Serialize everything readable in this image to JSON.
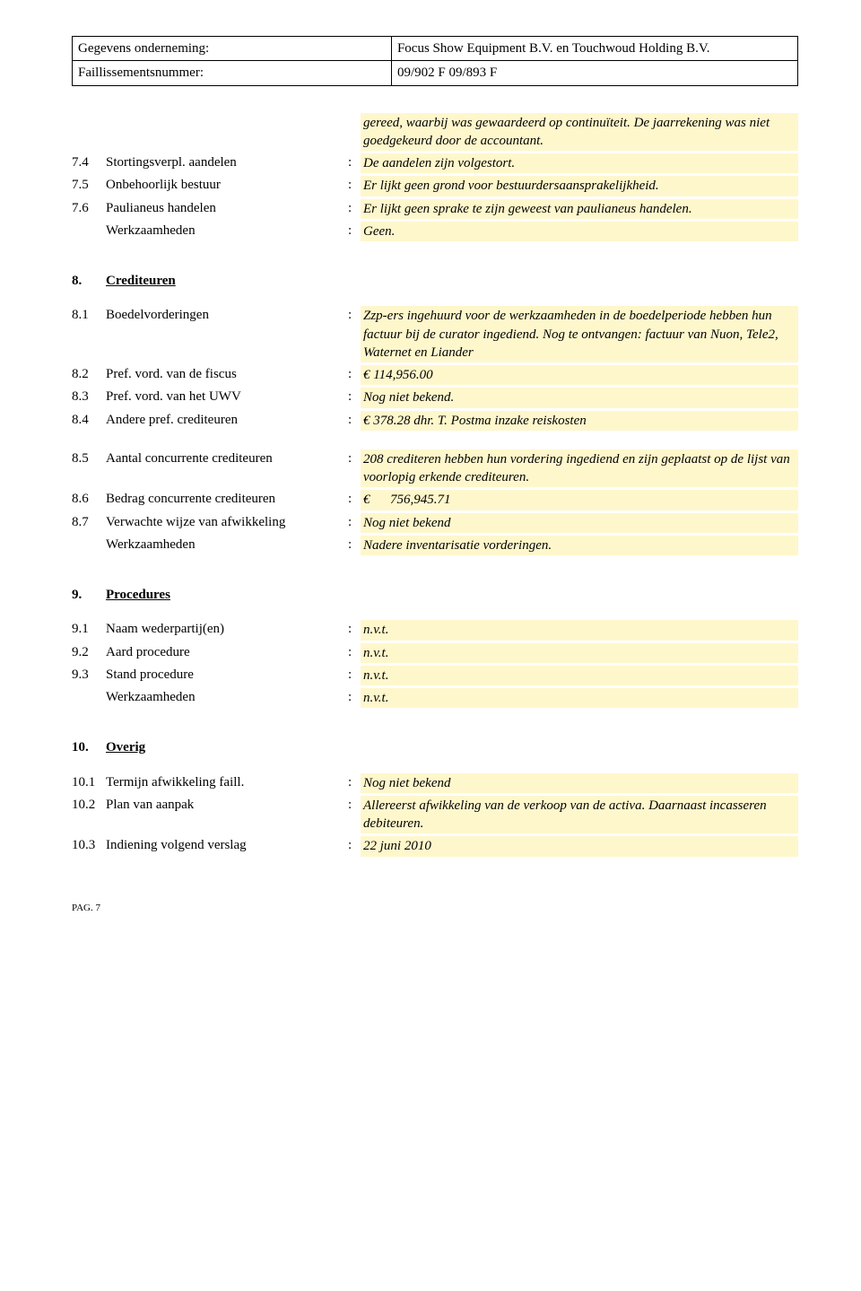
{
  "header": {
    "company_label": "Gegevens onderneming:",
    "company_value": "Focus Show Equipment B.V. en Touchwoud Holding B.V.",
    "fileno_label": "Faillissementsnummer:",
    "fileno_value": "09/902 F 09/893 F"
  },
  "hl_bg": "#fff7cc",
  "block7_intro": "gereed, waarbij was gewaardeerd op continuïteit. De jaarrekening was niet goedgekeurd door de accountant.",
  "r74": {
    "num": "7.4",
    "label": "Stortingsverpl. aandelen",
    "val": "De aandelen zijn volgestort."
  },
  "r75": {
    "num": "7.5",
    "label": "Onbehoorlijk bestuur",
    "val": "Er lijkt geen grond voor bestuurdersaansprakelijkheid."
  },
  "r76": {
    "num": "7.6",
    "label": "Paulianeus handelen",
    "val": "Er lijkt geen sprake te zijn geweest van paulianeus handelen."
  },
  "r7w": {
    "label": "Werkzaamheden",
    "val": "Geen."
  },
  "sec8": {
    "num": "8.",
    "label": "Crediteuren"
  },
  "r81": {
    "num": "8.1",
    "label": "Boedelvorderingen",
    "val": "Zzp-ers ingehuurd voor de werkzaamheden in de boedelperiode hebben hun factuur bij de curator ingediend. Nog te ontvangen: factuur van Nuon, Tele2, Waternet en Liander"
  },
  "r82": {
    "num": "8.2",
    "label": "Pref. vord. van de fiscus",
    "val": "€ 114,956.00"
  },
  "r83": {
    "num": "8.3",
    "label": "Pref. vord. van het UWV",
    "val": "Nog niet bekend."
  },
  "r84": {
    "num": "8.4",
    "label": "Andere pref. crediteuren",
    "val": "€ 378.28 dhr. T. Postma inzake  reiskosten"
  },
  "r85": {
    "num": "8.5",
    "label": "Aantal concurrente crediteuren",
    "val": "208 crediteren hebben hun vordering ingediend en zijn geplaatst op de lijst van voorlopig erkende crediteuren."
  },
  "r86": {
    "num": "8.6",
    "label": "Bedrag concurrente crediteuren",
    "val": "€      756,945.71"
  },
  "r87": {
    "num": "8.7",
    "label": "Verwachte wijze van afwikkeling",
    "val": "Nog niet bekend"
  },
  "r8w": {
    "label": "Werkzaamheden",
    "val": "Nadere inventarisatie vorderingen."
  },
  "sec9": {
    "num": "9.",
    "label": "Procedures"
  },
  "r91": {
    "num": "9.1",
    "label": "Naam wederpartij(en)",
    "val": "n.v.t."
  },
  "r92": {
    "num": "9.2",
    "label": "Aard procedure",
    "val": "n.v.t."
  },
  "r93": {
    "num": "9.3",
    "label": "Stand procedure",
    "val": "n.v.t."
  },
  "r9w": {
    "label": "Werkzaamheden",
    "val": "n.v.t."
  },
  "sec10": {
    "num": "10.",
    "label": "Overig"
  },
  "r101": {
    "num": "10.1",
    "label": "Termijn afwikkeling faill.",
    "val": "Nog niet bekend"
  },
  "r102": {
    "num": "10.2",
    "label": "Plan van aanpak",
    "val": "Allereerst afwikkeling van de verkoop van de activa. Daarnaast incasseren debiteuren."
  },
  "r103": {
    "num": "10.3",
    "label": "Indiening volgend verslag",
    "val": "22  juni 2010"
  },
  "pag": "PAG. 7"
}
